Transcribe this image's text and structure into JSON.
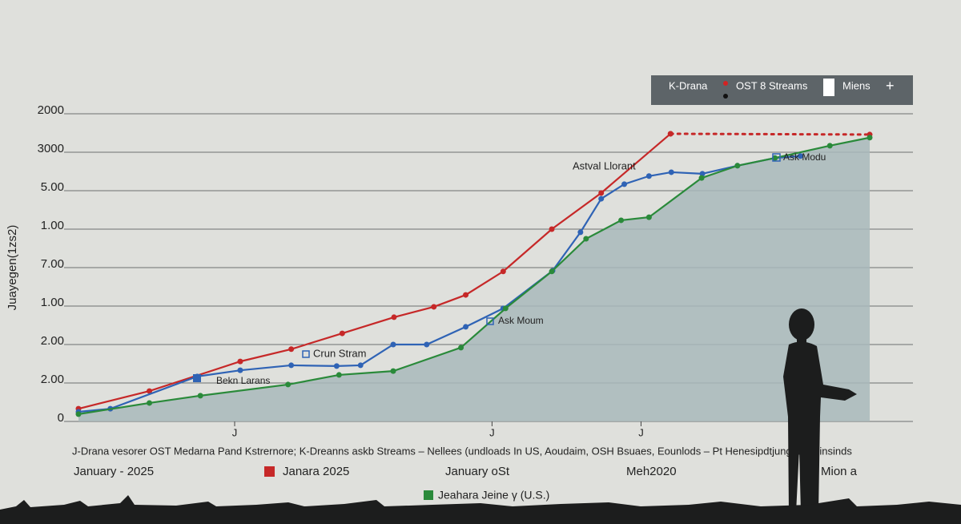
{
  "chart_data": {
    "type": "line",
    "y_label": "Juayegen(1zs2)",
    "ylim": [
      0,
      8
    ],
    "yticks": [
      {
        "value": 0,
        "label": "0"
      },
      {
        "value": 1,
        "label": "2.00"
      },
      {
        "value": 2,
        "label": "2.00"
      },
      {
        "value": 3,
        "label": "1.00"
      },
      {
        "value": 4,
        "label": "7.00"
      },
      {
        "value": 5,
        "label": "1.00"
      },
      {
        "value": 6,
        "label": "5.00"
      },
      {
        "value": 7,
        "label": "3000"
      },
      {
        "value": 8,
        "label": "2000"
      }
    ],
    "xlim": [
      0,
      100
    ],
    "xticks": [
      {
        "value": 19.9,
        "label": "J"
      },
      {
        "value": 52.2,
        "label": "J"
      },
      {
        "value": 70.9,
        "label": "J"
      }
    ],
    "grid": true,
    "area_fill": "#a9b8bb",
    "series": [
      {
        "color": "#c62828",
        "style": "solid",
        "x": [
          0.3,
          9.2,
          20.6,
          27.0,
          33.4,
          39.9,
          44.9,
          48.9,
          53.6,
          59.7,
          65.9,
          74.6
        ],
        "values": [
          0.33,
          0.79,
          1.56,
          1.88,
          2.29,
          2.71,
          2.98,
          3.29,
          3.9,
          5.0,
          5.94,
          7.48
        ]
      },
      {
        "color": "#c62828",
        "style": "dotted",
        "x": [
          74.6,
          99.6
        ],
        "values": [
          7.48,
          7.46
        ]
      },
      {
        "color": "#2f63b5",
        "style": "solid",
        "x": [
          0.3,
          4.3,
          15.2,
          20.6,
          27.0,
          32.7,
          35.7,
          39.8,
          44.0,
          48.9,
          53.6,
          59.8,
          63.3,
          65.9,
          68.8,
          71.9,
          74.7,
          78.6,
          83.0,
          87.7,
          90.9
        ],
        "values": [
          0.25,
          0.33,
          1.17,
          1.33,
          1.46,
          1.44,
          1.46,
          2.0,
          2.0,
          2.46,
          2.94,
          3.92,
          4.92,
          5.79,
          6.17,
          6.38,
          6.48,
          6.44,
          6.65,
          6.85,
          6.9
        ]
      },
      {
        "color": "#2a8a3a",
        "style": "solid",
        "area": true,
        "x": [
          0.3,
          9.2,
          15.6,
          26.6,
          33.0,
          39.8,
          48.3,
          53.9,
          59.7,
          64.0,
          68.4,
          71.9,
          78.5,
          83.0,
          87.7,
          94.6,
          99.6
        ],
        "values": [
          0.19,
          0.48,
          0.67,
          0.96,
          1.21,
          1.31,
          1.92,
          2.94,
          3.9,
          4.75,
          5.23,
          5.31,
          6.33,
          6.65,
          6.85,
          7.17,
          7.38
        ]
      }
    ],
    "annotations": [
      "Astval Llorant",
      "Crun Stram",
      "Bekn Larans",
      "Ask Moum",
      "Ask Modu"
    ],
    "legend": {
      "items": [
        "K-Drana",
        "OST 8 Streams",
        "Miens",
        "+"
      ]
    },
    "caption": "J-Drana vesorer OST Medarna Pand Kstrernore; K-Dreanns askb Streams – Nellees (undloads In US, Aoudaim, OSH Bsuaes, Eounlods – Pt Henesipdtjung downinsinds",
    "footer_labels": [
      "January - 2025",
      "Janara 2025",
      "January oSt",
      "Meh2020",
      "Mion a",
      "Jeahara Jeine γ (U.S.)"
    ]
  }
}
